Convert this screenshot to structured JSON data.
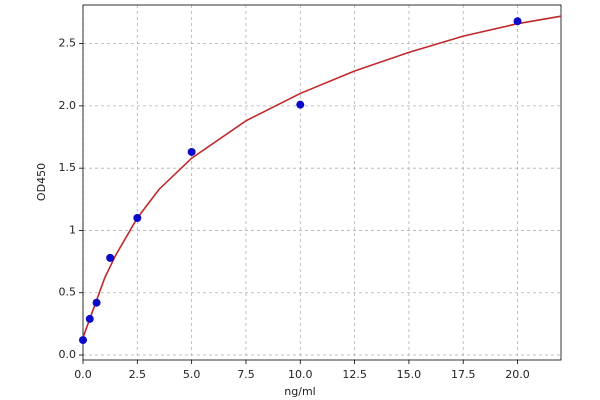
{
  "chart_data": {
    "type": "scatter",
    "xlabel": "ng/ml",
    "ylabel": "OD450",
    "xlim": [
      0,
      22
    ],
    "ylim": [
      -0.04,
      2.81
    ],
    "xticks": [
      {
        "value": 0,
        "label": "0.0"
      },
      {
        "value": 2.5,
        "label": "2.5"
      },
      {
        "value": 5,
        "label": "5.0"
      },
      {
        "value": 7.5,
        "label": "7.5"
      },
      {
        "value": 10,
        "label": "10.0"
      },
      {
        "value": 12.5,
        "label": "12.5"
      },
      {
        "value": 15,
        "label": "15.0"
      },
      {
        "value": 17.5,
        "label": "17.5"
      },
      {
        "value": 20,
        "label": "20.0"
      }
    ],
    "yticks": [
      {
        "value": 0,
        "label": "0.0"
      },
      0.5,
      1,
      1.5,
      {
        "value": 2,
        "label": "2.0"
      },
      2.5
    ],
    "grid": true,
    "series": [
      {
        "type": "line",
        "color": "#c0282a",
        "x": [
          0,
          0.5,
          1,
          1.5,
          2.5,
          3.5,
          5,
          7.5,
          10,
          12.5,
          15,
          17.5,
          20,
          22
        ],
        "values": [
          0.14,
          0.38,
          0.62,
          0.8,
          1.1,
          1.33,
          1.58,
          1.88,
          2.1,
          2.28,
          2.43,
          2.56,
          2.66,
          2.72
        ]
      },
      {
        "type": "scatter",
        "color": "#0a0ac8",
        "x": [
          0,
          0.312,
          0.625,
          1.25,
          2.5,
          5,
          10,
          20
        ],
        "values": [
          0.12,
          0.29,
          0.42,
          0.78,
          1.1,
          1.63,
          2.01,
          2.68
        ]
      }
    ]
  }
}
